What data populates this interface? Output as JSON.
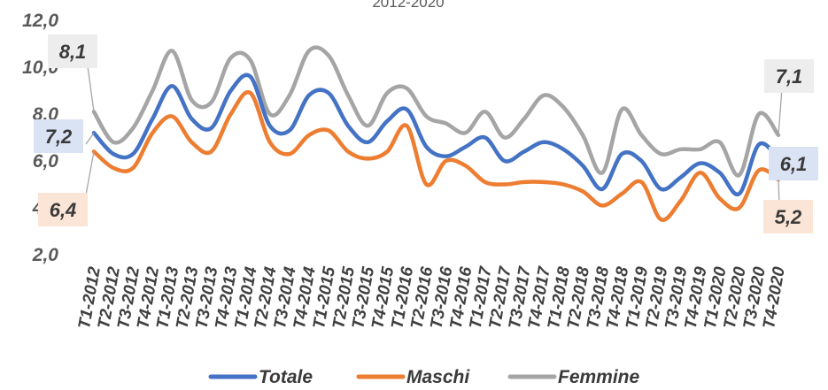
{
  "chart_data": {
    "type": "line",
    "title": "2012-2020",
    "categories": [
      "T1-2012",
      "T2-2012",
      "T3-2012",
      "T4-2012",
      "T1-2013",
      "T2-2013",
      "T3-2013",
      "T4-2013",
      "T1-2014",
      "T2-2014",
      "T3-2014",
      "T4-2014",
      "T1-2015",
      "T2-2015",
      "T3-2015",
      "T4-2015",
      "T1-2016",
      "T2-2016",
      "T3-2016",
      "T4-2016",
      "T1-2017",
      "T2-2017",
      "T3-2017",
      "T4-2017",
      "T1-2018",
      "T2-2018",
      "T3-2018",
      "T4-2018",
      "T1-2019",
      "T2-2019",
      "T3-2019",
      "T4-2019",
      "T1-2020",
      "T2-2020",
      "T3-2020",
      "T4-2020"
    ],
    "yticks": [
      "2,0",
      "4,0",
      "6,0",
      "8,0",
      "10,0",
      "12,0"
    ],
    "ylim": [
      2,
      12
    ],
    "grid": false,
    "legend_position": "bottom",
    "series": [
      {
        "name": "Totale",
        "color": "#4472C4",
        "values": [
          7.2,
          6.3,
          6.3,
          7.8,
          9.2,
          7.8,
          7.4,
          9.0,
          9.6,
          7.5,
          7.3,
          8.8,
          8.9,
          7.5,
          6.8,
          7.7,
          8.2,
          6.6,
          6.2,
          6.6,
          7.0,
          6.0,
          6.4,
          6.8,
          6.5,
          5.8,
          4.8,
          6.3,
          6.0,
          4.8,
          5.3,
          5.9,
          5.5,
          4.6,
          6.7,
          6.1
        ]
      },
      {
        "name": "Maschi",
        "color": "#ED7D31",
        "values": [
          6.4,
          5.7,
          5.7,
          7.2,
          7.9,
          6.8,
          6.4,
          8.0,
          8.9,
          6.8,
          6.3,
          7.1,
          7.3,
          6.4,
          6.1,
          6.4,
          7.5,
          5.0,
          6.0,
          5.8,
          5.1,
          5.0,
          5.1,
          5.1,
          5.0,
          4.7,
          4.1,
          4.6,
          5.1,
          3.5,
          4.3,
          5.5,
          4.4,
          4.0,
          5.6,
          5.2
        ]
      },
      {
        "name": "Femmine",
        "color": "#A5A5A5",
        "values": [
          8.1,
          6.8,
          7.4,
          9.0,
          10.7,
          8.6,
          8.5,
          10.4,
          10.3,
          8.0,
          8.8,
          10.7,
          10.5,
          8.8,
          7.5,
          8.9,
          9.1,
          7.9,
          7.6,
          7.2,
          8.1,
          7.0,
          7.8,
          8.8,
          8.3,
          7.1,
          5.5,
          8.2,
          7.1,
          6.3,
          6.5,
          6.5,
          6.8,
          5.4,
          8.0,
          7.1
        ]
      }
    ],
    "annotations": [
      {
        "text": "8,1",
        "series": "Femmine",
        "index": 0
      },
      {
        "text": "7,2",
        "series": "Totale",
        "index": 0
      },
      {
        "text": "6,4",
        "series": "Maschi",
        "index": 0
      },
      {
        "text": "7,1",
        "series": "Femmine",
        "index": 35
      },
      {
        "text": "6,1",
        "series": "Totale",
        "index": 35
      },
      {
        "text": "5,2",
        "series": "Maschi",
        "index": 35
      }
    ]
  }
}
